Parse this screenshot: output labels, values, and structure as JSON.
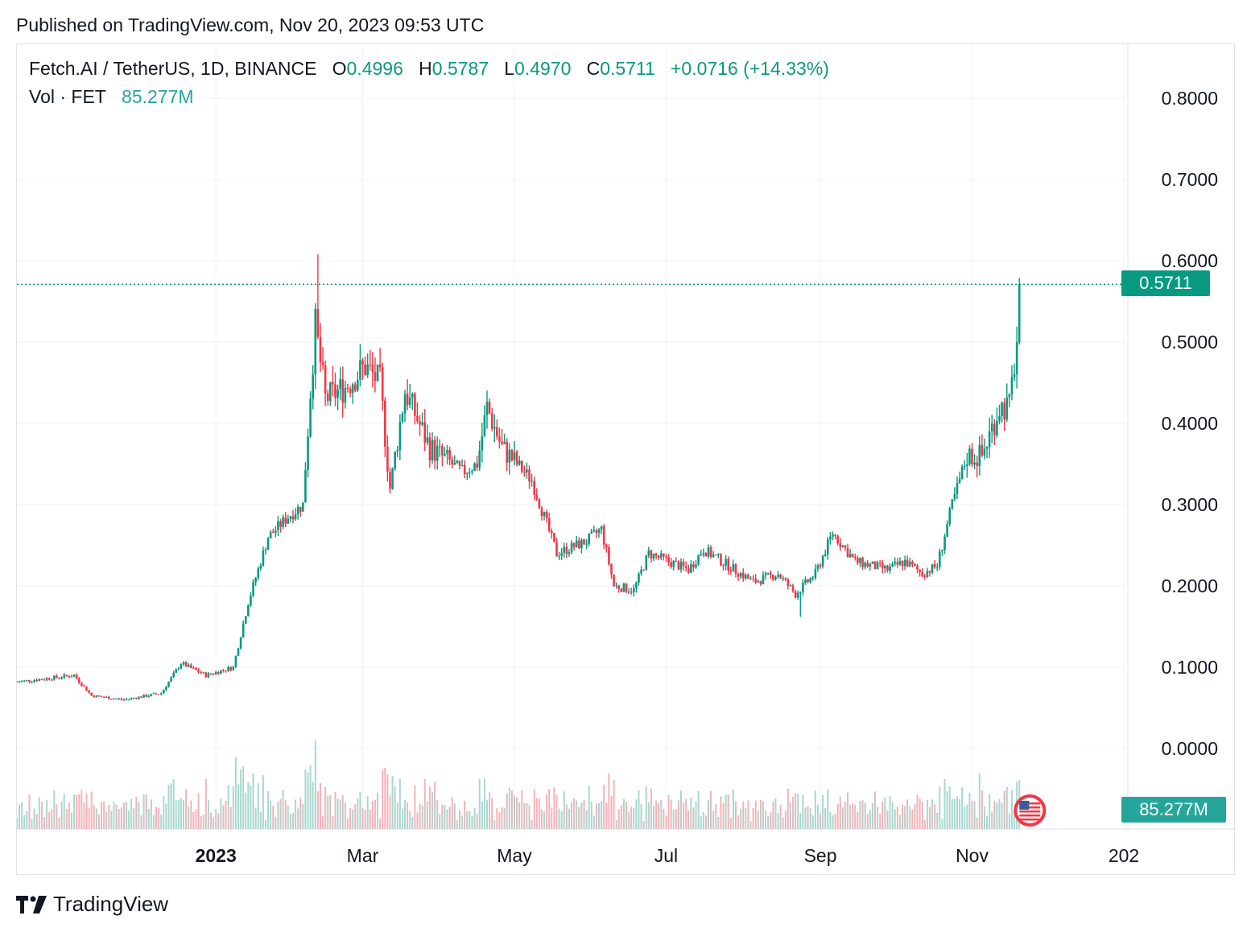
{
  "published": "Published on TradingView.com, Nov 20, 2023 09:53 UTC",
  "brand": {
    "name": "TradingView",
    "logo_icon": "tradingview-logo-icon"
  },
  "legend": {
    "symbol": "Fetch.AI / TetherUS, 1D, BINANCE",
    "o_label": "O",
    "o_value": "0.4996",
    "h_label": "H",
    "h_value": "0.5787",
    "l_label": "L",
    "l_value": "0.4970",
    "c_label": "C",
    "c_value": "0.5711",
    "change": "+0.0716 (+14.33%)",
    "vol_label": "Vol · FET",
    "vol_value": "85.277M"
  },
  "price_tag": "0.5711",
  "volume_tag": "85.277M",
  "colors": {
    "up": "#089981",
    "down": "#f23645",
    "up_vol": "#a8d8d0",
    "down_vol": "#f5b3b8",
    "grid": "#f0f3fa"
  },
  "chart_data": {
    "type": "candlestick",
    "y_ticks": [
      "0.8000",
      "0.7000",
      "0.6000",
      "0.5000",
      "0.4000",
      "0.3000",
      "0.2000",
      "0.1000",
      "0.0000"
    ],
    "y_tick_values": [
      0.8,
      0.7,
      0.6,
      0.5,
      0.4,
      0.3,
      0.2,
      0.1,
      0.0
    ],
    "ylim": [
      0.0,
      0.8
    ],
    "x_ticks": [
      "2023",
      "Mar",
      "May",
      "Jul",
      "Sep",
      "Nov",
      "202"
    ],
    "x_tick_dates": [
      "2023-01-01",
      "2023-03-01",
      "2023-05-01",
      "2023-07-01",
      "2023-09-01",
      "2023-11-01",
      "2024-01-01"
    ],
    "x_range": [
      "2022-10-13",
      "2024-01-01"
    ],
    "last_close": 0.5711,
    "volume_max": 100,
    "anchors": [
      [
        "2022-10-13",
        0.082
      ],
      [
        "2022-11-05",
        0.09
      ],
      [
        "2022-11-12",
        0.065
      ],
      [
        "2022-11-25",
        0.06
      ],
      [
        "2022-12-10",
        0.068
      ],
      [
        "2022-12-18",
        0.105
      ],
      [
        "2022-12-28",
        0.09
      ],
      [
        "2023-01-08",
        0.1
      ],
      [
        "2023-01-14",
        0.18
      ],
      [
        "2023-01-22",
        0.26
      ],
      [
        "2023-01-30",
        0.285
      ],
      [
        "2023-02-05",
        0.3
      ],
      [
        "2023-02-08",
        0.44
      ],
      [
        "2023-02-10",
        0.52
      ],
      [
        "2023-02-14",
        0.43
      ],
      [
        "2023-02-22",
        0.445
      ],
      [
        "2023-03-02",
        0.47
      ],
      [
        "2023-03-08",
        0.45
      ],
      [
        "2023-03-12",
        0.32
      ],
      [
        "2023-03-18",
        0.44
      ],
      [
        "2023-03-28",
        0.37
      ],
      [
        "2023-04-10",
        0.34
      ],
      [
        "2023-04-16",
        0.35
      ],
      [
        "2023-04-20",
        0.42
      ],
      [
        "2023-04-26",
        0.37
      ],
      [
        "2023-05-08",
        0.33
      ],
      [
        "2023-05-18",
        0.24
      ],
      [
        "2023-05-30",
        0.255
      ],
      [
        "2023-06-05",
        0.27
      ],
      [
        "2023-06-10",
        0.2
      ],
      [
        "2023-06-18",
        0.195
      ],
      [
        "2023-06-24",
        0.24
      ],
      [
        "2023-07-10",
        0.22
      ],
      [
        "2023-07-16",
        0.245
      ],
      [
        "2023-08-05",
        0.205
      ],
      [
        "2023-08-15",
        0.215
      ],
      [
        "2023-08-22",
        0.19
      ],
      [
        "2023-08-30",
        0.215
      ],
      [
        "2023-09-06",
        0.265
      ],
      [
        "2023-09-15",
        0.23
      ],
      [
        "2023-09-28",
        0.22
      ],
      [
        "2023-10-05",
        0.23
      ],
      [
        "2023-10-12",
        0.215
      ],
      [
        "2023-10-18",
        0.225
      ],
      [
        "2023-10-24",
        0.3
      ],
      [
        "2023-10-30",
        0.36
      ],
      [
        "2023-11-05",
        0.36
      ],
      [
        "2023-11-12",
        0.42
      ],
      [
        "2023-11-16",
        0.42
      ],
      [
        "2023-11-19",
        0.5
      ],
      [
        "2023-11-20",
        0.5711
      ]
    ],
    "extreme_wicks": [
      [
        "2023-02-11",
        0.608
      ],
      [
        "2023-08-24",
        0.162
      ]
    ]
  }
}
